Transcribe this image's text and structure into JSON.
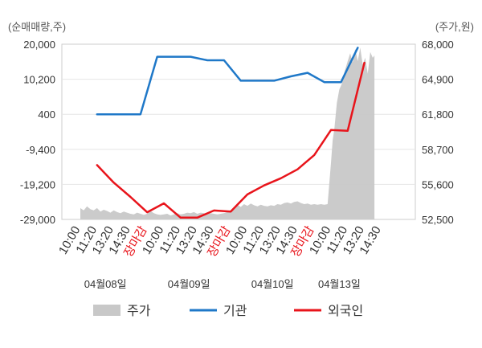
{
  "chart_data": {
    "type": "line",
    "left_axis_unit": "(순매매량,주)",
    "right_axis_unit": "(주가,원)",
    "left_ticks": [
      "20,000",
      "10,200",
      "400",
      "-9,400",
      "-19,200",
      "-29,000"
    ],
    "right_ticks": [
      "68,000",
      "64,900",
      "61,800",
      "58,700",
      "55,600",
      "52,500"
    ],
    "left_range": [
      -29000,
      20000
    ],
    "right_range": [
      52500,
      68000
    ],
    "x_ticks": [
      {
        "label": "10:00",
        "close": false
      },
      {
        "label": "11:20",
        "close": false
      },
      {
        "label": "13:20",
        "close": false
      },
      {
        "label": "14:30",
        "close": false
      },
      {
        "label": "장마감",
        "close": true
      },
      {
        "label": "10:00",
        "close": false
      },
      {
        "label": "11:20",
        "close": false
      },
      {
        "label": "13:20",
        "close": false
      },
      {
        "label": "14:30",
        "close": false
      },
      {
        "label": "장마감",
        "close": true
      },
      {
        "label": "10:00",
        "close": false
      },
      {
        "label": "11:20",
        "close": false
      },
      {
        "label": "13:20",
        "close": false
      },
      {
        "label": "14:30",
        "close": false
      },
      {
        "label": "장마감",
        "close": true
      },
      {
        "label": "10:00",
        "close": false
      },
      {
        "label": "11:20",
        "close": false
      },
      {
        "label": "13:20",
        "close": false
      },
      {
        "label": "14:30",
        "close": false
      }
    ],
    "dates": [
      {
        "label": "04월08일",
        "tick_index": 1.5
      },
      {
        "label": "04월09일",
        "tick_index": 6.5
      },
      {
        "label": "04월10일",
        "tick_index": 11.5
      },
      {
        "label": "04월13일",
        "tick_index": 15.5
      }
    ],
    "series": [
      {
        "name": "주가",
        "kind": "area",
        "axis": "right",
        "color": "#c8c8c8",
        "points": [
          [
            0,
            53500
          ],
          [
            0.2,
            53300
          ],
          [
            0.4,
            53650
          ],
          [
            0.6,
            53400
          ],
          [
            0.8,
            53300
          ],
          [
            1.0,
            53500
          ],
          [
            1.2,
            53200
          ],
          [
            1.4,
            53350
          ],
          [
            1.6,
            53250
          ],
          [
            1.8,
            53100
          ],
          [
            2.0,
            53300
          ],
          [
            2.2,
            53150
          ],
          [
            2.4,
            53050
          ],
          [
            2.6,
            53200
          ],
          [
            2.8,
            53100
          ],
          [
            3.0,
            53000
          ],
          [
            3.2,
            52950
          ],
          [
            3.4,
            53100
          ],
          [
            3.6,
            53000
          ],
          [
            3.8,
            52900
          ],
          [
            4.0,
            53000
          ],
          [
            4.2,
            53250
          ],
          [
            4.4,
            53050
          ],
          [
            4.6,
            52950
          ],
          [
            4.8,
            52900
          ],
          [
            5.0,
            52950
          ],
          [
            5.2,
            53000
          ],
          [
            5.4,
            52850
          ],
          [
            5.6,
            52950
          ],
          [
            5.8,
            53050
          ],
          [
            6.0,
            52950
          ],
          [
            6.2,
            53000
          ],
          [
            6.4,
            53100
          ],
          [
            6.6,
            53050
          ],
          [
            6.8,
            53150
          ],
          [
            7.0,
            53000
          ],
          [
            7.2,
            53100
          ],
          [
            7.4,
            53050
          ],
          [
            7.6,
            52950
          ],
          [
            7.8,
            53050
          ],
          [
            8.0,
            53000
          ],
          [
            8.2,
            52950
          ],
          [
            8.4,
            53000
          ],
          [
            8.6,
            53050
          ],
          [
            8.8,
            53150
          ],
          [
            9.0,
            53300
          ],
          [
            9.2,
            53500
          ],
          [
            9.4,
            53800
          ],
          [
            9.6,
            53600
          ],
          [
            9.8,
            53850
          ],
          [
            10.0,
            53700
          ],
          [
            10.2,
            53900
          ],
          [
            10.4,
            53750
          ],
          [
            10.6,
            53650
          ],
          [
            10.8,
            53800
          ],
          [
            11.0,
            53700
          ],
          [
            11.2,
            53650
          ],
          [
            11.4,
            53750
          ],
          [
            11.6,
            53700
          ],
          [
            11.8,
            53850
          ],
          [
            12.0,
            53800
          ],
          [
            12.2,
            53950
          ],
          [
            12.4,
            54000
          ],
          [
            12.6,
            53900
          ],
          [
            12.8,
            54050
          ],
          [
            13.0,
            54100
          ],
          [
            13.2,
            53950
          ],
          [
            13.4,
            53850
          ],
          [
            13.6,
            53900
          ],
          [
            13.8,
            53800
          ],
          [
            14.0,
            53850
          ],
          [
            14.2,
            53800
          ],
          [
            14.4,
            53850
          ],
          [
            14.6,
            53800
          ],
          [
            14.8,
            53850
          ],
          [
            15.0,
            57500
          ],
          [
            15.1,
            59500
          ],
          [
            15.2,
            60500
          ],
          [
            15.35,
            62800
          ],
          [
            15.5,
            64000
          ],
          [
            15.65,
            64500
          ],
          [
            15.8,
            65500
          ],
          [
            16.0,
            66500
          ],
          [
            16.15,
            67200
          ],
          [
            16.3,
            66400
          ],
          [
            16.45,
            67600
          ],
          [
            16.6,
            66500
          ],
          [
            16.75,
            67700
          ],
          [
            16.9,
            66200
          ],
          [
            17.05,
            66800
          ],
          [
            17.2,
            65400
          ],
          [
            17.35,
            67300
          ],
          [
            17.5,
            66800
          ],
          [
            17.6,
            67000
          ],
          [
            17.6,
            52500
          ]
        ]
      },
      {
        "name": "기관",
        "kind": "line",
        "axis": "left",
        "color": "#1f78c8",
        "points": [
          [
            1,
            400
          ],
          [
            2,
            400
          ],
          [
            3,
            400
          ],
          [
            3.6,
            400
          ],
          [
            4.6,
            16500
          ],
          [
            5.6,
            16500
          ],
          [
            6.6,
            16500
          ],
          [
            7.6,
            15500
          ],
          [
            8.6,
            15500
          ],
          [
            9.6,
            9800
          ],
          [
            10.6,
            9800
          ],
          [
            11.6,
            9800
          ],
          [
            12.6,
            11000
          ],
          [
            13.6,
            12000
          ],
          [
            14.6,
            9400
          ],
          [
            15.6,
            9400
          ],
          [
            16.6,
            19000
          ]
        ]
      },
      {
        "name": "외국인",
        "kind": "line",
        "axis": "left",
        "color": "#e8141b",
        "points": [
          [
            1,
            -13800
          ],
          [
            2,
            -18700
          ],
          [
            3,
            -22700
          ],
          [
            4,
            -27000
          ],
          [
            5,
            -24500
          ],
          [
            6,
            -28500
          ],
          [
            7,
            -28500
          ],
          [
            8,
            -26500
          ],
          [
            9,
            -26800
          ],
          [
            10,
            -22000
          ],
          [
            11,
            -19500
          ],
          [
            12,
            -17500
          ],
          [
            13,
            -15000
          ],
          [
            14,
            -11000
          ],
          [
            15,
            -4000
          ],
          [
            16,
            -4200
          ],
          [
            17,
            14800
          ]
        ]
      }
    ],
    "legend": [
      {
        "name": "주가",
        "kind": "area",
        "color": "#c8c8c8"
      },
      {
        "name": "기관",
        "kind": "line",
        "color": "#1f78c8"
      },
      {
        "name": "외국인",
        "kind": "line",
        "color": "#e8141b"
      }
    ],
    "grid": true,
    "legend_position": "bottom"
  }
}
